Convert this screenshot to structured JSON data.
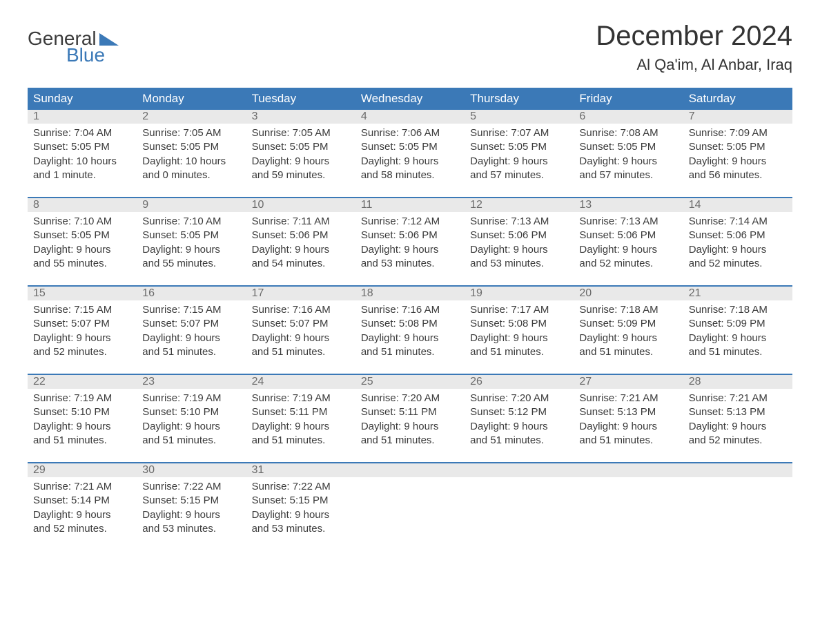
{
  "logo": {
    "text1": "General",
    "text2": "Blue"
  },
  "title": "December 2024",
  "location": "Al Qa'im, Al Anbar, Iraq",
  "colors": {
    "header_bg": "#3b79b7",
    "header_text": "#ffffff",
    "daynum_bg": "#e9e9e9",
    "daynum_text": "#6b6b6b",
    "body_text": "#3b3b3b",
    "border": "#3b79b7",
    "logo_gray": "#3b3b3b",
    "logo_blue": "#3b79b7",
    "page_bg": "#ffffff"
  },
  "typography": {
    "month_title_fontsize": 40,
    "location_fontsize": 22,
    "day_header_fontsize": 17,
    "daynum_fontsize": 16,
    "body_fontsize": 15,
    "logo_fontsize": 28
  },
  "layout": {
    "columns": 7,
    "rows": 5
  },
  "day_headers": [
    "Sunday",
    "Monday",
    "Tuesday",
    "Wednesday",
    "Thursday",
    "Friday",
    "Saturday"
  ],
  "weeks": [
    [
      {
        "num": "1",
        "sunrise": "Sunrise: 7:04 AM",
        "sunset": "Sunset: 5:05 PM",
        "day1": "Daylight: 10 hours",
        "day2": "and 1 minute."
      },
      {
        "num": "2",
        "sunrise": "Sunrise: 7:05 AM",
        "sunset": "Sunset: 5:05 PM",
        "day1": "Daylight: 10 hours",
        "day2": "and 0 minutes."
      },
      {
        "num": "3",
        "sunrise": "Sunrise: 7:05 AM",
        "sunset": "Sunset: 5:05 PM",
        "day1": "Daylight: 9 hours",
        "day2": "and 59 minutes."
      },
      {
        "num": "4",
        "sunrise": "Sunrise: 7:06 AM",
        "sunset": "Sunset: 5:05 PM",
        "day1": "Daylight: 9 hours",
        "day2": "and 58 minutes."
      },
      {
        "num": "5",
        "sunrise": "Sunrise: 7:07 AM",
        "sunset": "Sunset: 5:05 PM",
        "day1": "Daylight: 9 hours",
        "day2": "and 57 minutes."
      },
      {
        "num": "6",
        "sunrise": "Sunrise: 7:08 AM",
        "sunset": "Sunset: 5:05 PM",
        "day1": "Daylight: 9 hours",
        "day2": "and 57 minutes."
      },
      {
        "num": "7",
        "sunrise": "Sunrise: 7:09 AM",
        "sunset": "Sunset: 5:05 PM",
        "day1": "Daylight: 9 hours",
        "day2": "and 56 minutes."
      }
    ],
    [
      {
        "num": "8",
        "sunrise": "Sunrise: 7:10 AM",
        "sunset": "Sunset: 5:05 PM",
        "day1": "Daylight: 9 hours",
        "day2": "and 55 minutes."
      },
      {
        "num": "9",
        "sunrise": "Sunrise: 7:10 AM",
        "sunset": "Sunset: 5:05 PM",
        "day1": "Daylight: 9 hours",
        "day2": "and 55 minutes."
      },
      {
        "num": "10",
        "sunrise": "Sunrise: 7:11 AM",
        "sunset": "Sunset: 5:06 PM",
        "day1": "Daylight: 9 hours",
        "day2": "and 54 minutes."
      },
      {
        "num": "11",
        "sunrise": "Sunrise: 7:12 AM",
        "sunset": "Sunset: 5:06 PM",
        "day1": "Daylight: 9 hours",
        "day2": "and 53 minutes."
      },
      {
        "num": "12",
        "sunrise": "Sunrise: 7:13 AM",
        "sunset": "Sunset: 5:06 PM",
        "day1": "Daylight: 9 hours",
        "day2": "and 53 minutes."
      },
      {
        "num": "13",
        "sunrise": "Sunrise: 7:13 AM",
        "sunset": "Sunset: 5:06 PM",
        "day1": "Daylight: 9 hours",
        "day2": "and 52 minutes."
      },
      {
        "num": "14",
        "sunrise": "Sunrise: 7:14 AM",
        "sunset": "Sunset: 5:06 PM",
        "day1": "Daylight: 9 hours",
        "day2": "and 52 minutes."
      }
    ],
    [
      {
        "num": "15",
        "sunrise": "Sunrise: 7:15 AM",
        "sunset": "Sunset: 5:07 PM",
        "day1": "Daylight: 9 hours",
        "day2": "and 52 minutes."
      },
      {
        "num": "16",
        "sunrise": "Sunrise: 7:15 AM",
        "sunset": "Sunset: 5:07 PM",
        "day1": "Daylight: 9 hours",
        "day2": "and 51 minutes."
      },
      {
        "num": "17",
        "sunrise": "Sunrise: 7:16 AM",
        "sunset": "Sunset: 5:07 PM",
        "day1": "Daylight: 9 hours",
        "day2": "and 51 minutes."
      },
      {
        "num": "18",
        "sunrise": "Sunrise: 7:16 AM",
        "sunset": "Sunset: 5:08 PM",
        "day1": "Daylight: 9 hours",
        "day2": "and 51 minutes."
      },
      {
        "num": "19",
        "sunrise": "Sunrise: 7:17 AM",
        "sunset": "Sunset: 5:08 PM",
        "day1": "Daylight: 9 hours",
        "day2": "and 51 minutes."
      },
      {
        "num": "20",
        "sunrise": "Sunrise: 7:18 AM",
        "sunset": "Sunset: 5:09 PM",
        "day1": "Daylight: 9 hours",
        "day2": "and 51 minutes."
      },
      {
        "num": "21",
        "sunrise": "Sunrise: 7:18 AM",
        "sunset": "Sunset: 5:09 PM",
        "day1": "Daylight: 9 hours",
        "day2": "and 51 minutes."
      }
    ],
    [
      {
        "num": "22",
        "sunrise": "Sunrise: 7:19 AM",
        "sunset": "Sunset: 5:10 PM",
        "day1": "Daylight: 9 hours",
        "day2": "and 51 minutes."
      },
      {
        "num": "23",
        "sunrise": "Sunrise: 7:19 AM",
        "sunset": "Sunset: 5:10 PM",
        "day1": "Daylight: 9 hours",
        "day2": "and 51 minutes."
      },
      {
        "num": "24",
        "sunrise": "Sunrise: 7:19 AM",
        "sunset": "Sunset: 5:11 PM",
        "day1": "Daylight: 9 hours",
        "day2": "and 51 minutes."
      },
      {
        "num": "25",
        "sunrise": "Sunrise: 7:20 AM",
        "sunset": "Sunset: 5:11 PM",
        "day1": "Daylight: 9 hours",
        "day2": "and 51 minutes."
      },
      {
        "num": "26",
        "sunrise": "Sunrise: 7:20 AM",
        "sunset": "Sunset: 5:12 PM",
        "day1": "Daylight: 9 hours",
        "day2": "and 51 minutes."
      },
      {
        "num": "27",
        "sunrise": "Sunrise: 7:21 AM",
        "sunset": "Sunset: 5:13 PM",
        "day1": "Daylight: 9 hours",
        "day2": "and 51 minutes."
      },
      {
        "num": "28",
        "sunrise": "Sunrise: 7:21 AM",
        "sunset": "Sunset: 5:13 PM",
        "day1": "Daylight: 9 hours",
        "day2": "and 52 minutes."
      }
    ],
    [
      {
        "num": "29",
        "sunrise": "Sunrise: 7:21 AM",
        "sunset": "Sunset: 5:14 PM",
        "day1": "Daylight: 9 hours",
        "day2": "and 52 minutes."
      },
      {
        "num": "30",
        "sunrise": "Sunrise: 7:22 AM",
        "sunset": "Sunset: 5:15 PM",
        "day1": "Daylight: 9 hours",
        "day2": "and 53 minutes."
      },
      {
        "num": "31",
        "sunrise": "Sunrise: 7:22 AM",
        "sunset": "Sunset: 5:15 PM",
        "day1": "Daylight: 9 hours",
        "day2": "and 53 minutes."
      },
      null,
      null,
      null,
      null
    ]
  ]
}
